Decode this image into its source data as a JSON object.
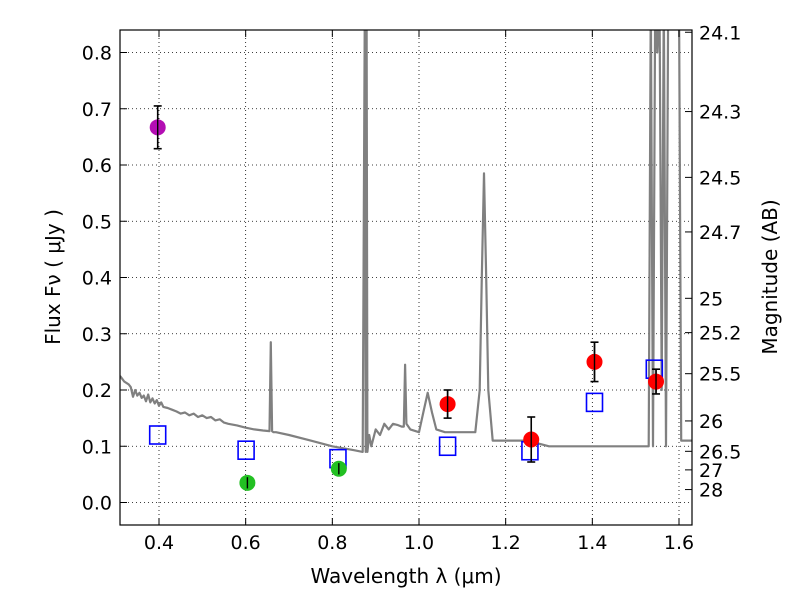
{
  "chart_data": {
    "type": "scatter",
    "xlabel": "Wavelength  λ (μm)",
    "ylabel": "Flux  Fν ( μJy )",
    "ylabel_right": "Magnitude (AB)",
    "xlim": [
      0.31,
      1.63
    ],
    "ylim": [
      -0.04,
      0.84
    ],
    "grid": true,
    "x_ticks": [
      0.4,
      0.6,
      0.8,
      1.0,
      1.2,
      1.4,
      1.6
    ],
    "x_tick_labels": [
      "0.4",
      "0.6",
      "0.8",
      "1.0",
      "1.2",
      "1.4",
      "1.6"
    ],
    "y_ticks": [
      0.0,
      0.1,
      0.2,
      0.3,
      0.4,
      0.5,
      0.6,
      0.7,
      0.8
    ],
    "y_tick_labels": [
      "0.0",
      "0.1",
      "0.2",
      "0.3",
      "0.4",
      "0.5",
      "0.6",
      "0.7",
      "0.8"
    ],
    "right_ticks": [
      {
        "label": "24.1",
        "flux": 0.836
      },
      {
        "label": "24.3",
        "flux": 0.695
      },
      {
        "label": "24.5",
        "flux": 0.578
      },
      {
        "label": "24.7",
        "flux": 0.481
      },
      {
        "label": "25",
        "flux": 0.363
      },
      {
        "label": "25.2",
        "flux": 0.302
      },
      {
        "label": "25.5",
        "flux": 0.229
      },
      {
        "label": "26",
        "flux": 0.145
      },
      {
        "label": "26.5",
        "flux": 0.091
      },
      {
        "label": "27",
        "flux": 0.058
      },
      {
        "label": "28",
        "flux": 0.023
      }
    ],
    "series": [
      {
        "name": "model spectrum",
        "kind": "line",
        "color": "#808080",
        "x": [
          0.31,
          0.315,
          0.32,
          0.33,
          0.335,
          0.34,
          0.345,
          0.35,
          0.355,
          0.36,
          0.365,
          0.37,
          0.375,
          0.38,
          0.385,
          0.39,
          0.395,
          0.4,
          0.405,
          0.41,
          0.42,
          0.43,
          0.44,
          0.45,
          0.46,
          0.47,
          0.48,
          0.49,
          0.5,
          0.51,
          0.52,
          0.53,
          0.54,
          0.55,
          0.56,
          0.58,
          0.6,
          0.62,
          0.64,
          0.655,
          0.658,
          0.661,
          0.664,
          0.67,
          0.7,
          0.75,
          0.8,
          0.85,
          0.87,
          0.875,
          0.877,
          0.879,
          0.881,
          0.885,
          0.89,
          0.9,
          0.91,
          0.92,
          0.93,
          0.94,
          0.95,
          0.96,
          0.965,
          0.968,
          0.971,
          0.98,
          1.0,
          1.01,
          1.02,
          1.03,
          1.04,
          1.06,
          1.08,
          1.1,
          1.12,
          1.13,
          1.14,
          1.145,
          1.15,
          1.155,
          1.16,
          1.17,
          1.18,
          1.2,
          1.25,
          1.3,
          1.4,
          1.5,
          1.53,
          1.535,
          1.54,
          1.545,
          1.55,
          1.555,
          1.56,
          1.565,
          1.57,
          1.575,
          1.58,
          1.585,
          1.59,
          1.595,
          1.6,
          1.605,
          1.61,
          1.62,
          1.63
        ],
        "y": [
          0.225,
          0.22,
          0.215,
          0.21,
          0.205,
          0.188,
          0.2,
          0.19,
          0.195,
          0.186,
          0.19,
          0.18,
          0.192,
          0.178,
          0.185,
          0.176,
          0.182,
          0.172,
          0.178,
          0.17,
          0.168,
          0.165,
          0.162,
          0.158,
          0.16,
          0.155,
          0.158,
          0.152,
          0.155,
          0.15,
          0.152,
          0.146,
          0.148,
          0.142,
          0.14,
          0.137,
          0.133,
          0.13,
          0.128,
          0.127,
          0.285,
          0.127,
          0.125,
          0.125,
          0.12,
          0.11,
          0.1,
          0.093,
          0.09,
          0.88,
          0.09,
          0.88,
          0.09,
          0.12,
          0.1,
          0.13,
          0.12,
          0.14,
          0.13,
          0.14,
          0.138,
          0.135,
          0.135,
          0.245,
          0.14,
          0.13,
          0.125,
          0.16,
          0.195,
          0.16,
          0.13,
          0.125,
          0.125,
          0.125,
          0.125,
          0.125,
          0.2,
          0.4,
          0.585,
          0.4,
          0.2,
          0.11,
          0.11,
          0.11,
          0.11,
          0.1,
          0.1,
          0.1,
          0.1,
          0.9,
          0.1,
          0.9,
          0.8,
          0.9,
          0.2,
          0.9,
          0.1,
          0.9,
          0.9,
          0.9,
          0.9,
          0.9,
          0.9,
          0.11,
          0.11,
          0.11,
          0.11
        ]
      },
      {
        "name": "model photometry",
        "kind": "open-square",
        "color": "#0000ff",
        "x": [
          0.397,
          0.601,
          0.813,
          1.066,
          1.256,
          1.405,
          1.543
        ],
        "y": [
          0.12,
          0.093,
          0.078,
          0.1,
          0.092,
          0.178,
          0.237
        ]
      },
      {
        "name": "purple point",
        "kind": "point",
        "color": "#b30eb3",
        "x": [
          0.397
        ],
        "y": [
          0.667
        ],
        "yerr": [
          0.038
        ]
      },
      {
        "name": "green points",
        "kind": "point",
        "color": "#22c022",
        "x": [
          0.604,
          0.815
        ],
        "y": [
          0.035,
          0.06
        ],
        "yerr": [
          0.01,
          0.01
        ]
      },
      {
        "name": "red points",
        "kind": "point",
        "color": "#ff0000",
        "x": [
          1.066,
          1.259,
          1.405,
          1.547
        ],
        "y": [
          0.175,
          0.112,
          0.25,
          0.215
        ],
        "yerr": [
          0.025,
          0.04,
          0.035,
          0.022
        ]
      }
    ]
  }
}
